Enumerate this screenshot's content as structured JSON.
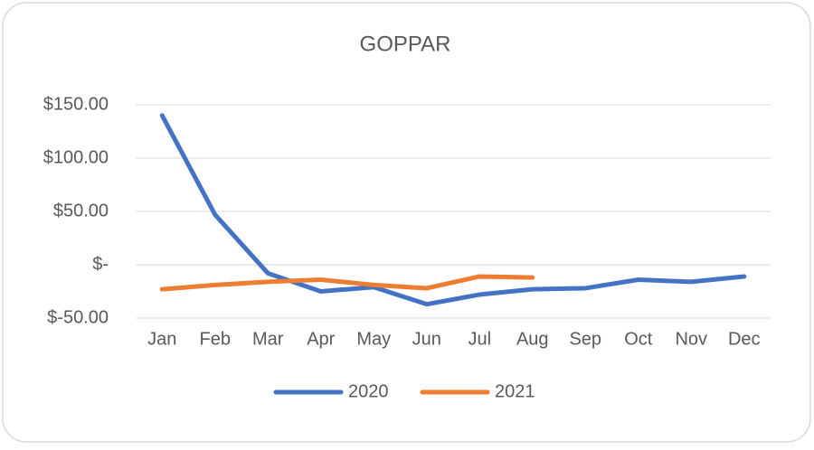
{
  "chart_data": {
    "type": "line",
    "title": "GOPPAR",
    "categories": [
      "Jan",
      "Feb",
      "Mar",
      "Apr",
      "May",
      "Jun",
      "Jul",
      "Aug",
      "Sep",
      "Oct",
      "Nov",
      "Dec"
    ],
    "series": [
      {
        "name": "2020",
        "color": "#4472c4",
        "values": [
          140,
          47,
          -8,
          -25,
          -21,
          -37,
          -28,
          -23,
          -22,
          -14,
          -16,
          -11
        ]
      },
      {
        "name": "2021",
        "color": "#ed7d31",
        "values": [
          -23,
          -19,
          -16,
          -14,
          -19,
          -22,
          -11,
          -12,
          null,
          null,
          null,
          null
        ]
      }
    ],
    "ylim": [
      -50,
      150
    ],
    "yticks": [
      {
        "value": -50,
        "label": "$-50.00"
      },
      {
        "value": 0,
        "label": "$-"
      },
      {
        "value": 50,
        "label": "$50.00"
      },
      {
        "value": 100,
        "label": "$100.00"
      },
      {
        "value": 150,
        "label": "$150.00"
      }
    ],
    "grid": true,
    "legend": "bottom"
  }
}
